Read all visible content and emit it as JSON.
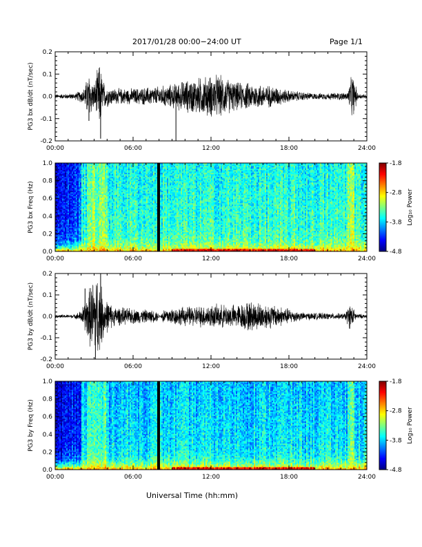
{
  "header": {
    "title": "2017/01/28  00:00−24:00 UT",
    "page": "Page 1/1"
  },
  "xlabel": "Universal Time (hh:mm)",
  "chart_data": [
    {
      "type": "line",
      "ylabel": "PG3 bx dB/dt (nT/sec)",
      "xlim": [
        0,
        24
      ],
      "ylim": [
        -0.2,
        0.2
      ],
      "xticks": [
        "00:00",
        "06:00",
        "12:00",
        "18:00",
        "24:00"
      ],
      "yticks": [
        "-0.2",
        "-0.1",
        "0.0",
        "0.1",
        "0.2"
      ],
      "color": "#000000",
      "envelope": [
        {
          "t": 0.0,
          "a": 0.01
        },
        {
          "t": 1.5,
          "a": 0.015
        },
        {
          "t": 2.2,
          "a": 0.04
        },
        {
          "t": 2.6,
          "a": 0.12
        },
        {
          "t": 3.0,
          "a": 0.06
        },
        {
          "t": 3.4,
          "a": 0.17
        },
        {
          "t": 3.8,
          "a": 0.06
        },
        {
          "t": 4.5,
          "a": 0.04
        },
        {
          "t": 6.0,
          "a": 0.04
        },
        {
          "t": 8.0,
          "a": 0.05
        },
        {
          "t": 9.0,
          "a": 0.06
        },
        {
          "t": 10.0,
          "a": 0.08
        },
        {
          "t": 11.5,
          "a": 0.1
        },
        {
          "t": 12.5,
          "a": 0.11
        },
        {
          "t": 14.0,
          "a": 0.07
        },
        {
          "t": 15.5,
          "a": 0.065
        },
        {
          "t": 17.0,
          "a": 0.05
        },
        {
          "t": 18.0,
          "a": 0.03
        },
        {
          "t": 20.0,
          "a": 0.015
        },
        {
          "t": 22.5,
          "a": 0.02
        },
        {
          "t": 22.9,
          "a": 0.12
        },
        {
          "t": 23.3,
          "a": 0.015
        },
        {
          "t": 24.0,
          "a": 0.01
        }
      ],
      "spikes": [
        {
          "t": 9.3,
          "v": -0.21
        },
        {
          "t": 3.5,
          "v": -0.19
        },
        {
          "t": 2.6,
          "v": -0.11
        }
      ]
    },
    {
      "type": "heatmap",
      "ylabel": "PG3 bx Freq (Hz)",
      "colorbar_label": "Log₁₀ Power",
      "xlim": [
        0,
        24
      ],
      "ylim": [
        0.0,
        1.0
      ],
      "xticks": [
        "00:00",
        "06:00",
        "12:00",
        "18:00",
        "24:00"
      ],
      "yticks": [
        "0.0",
        "0.2",
        "0.4",
        "0.6",
        "0.8",
        "1.0"
      ],
      "clim": [
        -4.8,
        -1.8
      ],
      "cticks": [
        "-1.8",
        "-2.8",
        "-3.8",
        "-4.8"
      ],
      "data_gap": [
        7.9,
        8.1
      ],
      "background_power": -3.5,
      "low_freq_power": -2.6,
      "quiet_interval": [
        0,
        2
      ],
      "quiet_power": -4.4
    },
    {
      "type": "line",
      "ylabel": "PG3 by dB/dt (nT/sec)",
      "xlim": [
        0,
        24
      ],
      "ylim": [
        -0.2,
        0.2
      ],
      "xticks": [
        "00:00",
        "06:00",
        "12:00",
        "18:00",
        "24:00"
      ],
      "yticks": [
        "-0.2",
        "-0.1",
        "0.0",
        "0.1",
        "0.2"
      ],
      "color": "#000000",
      "envelope": [
        {
          "t": 0.0,
          "a": 0.008
        },
        {
          "t": 1.5,
          "a": 0.01
        },
        {
          "t": 2.0,
          "a": 0.03
        },
        {
          "t": 2.5,
          "a": 0.12
        },
        {
          "t": 2.9,
          "a": 0.2
        },
        {
          "t": 3.3,
          "a": 0.22
        },
        {
          "t": 3.8,
          "a": 0.1
        },
        {
          "t": 4.5,
          "a": 0.05
        },
        {
          "t": 6.0,
          "a": 0.04
        },
        {
          "t": 7.8,
          "a": 0.03
        },
        {
          "t": 8.1,
          "a": 0.0
        },
        {
          "t": 8.3,
          "a": 0.04
        },
        {
          "t": 10.0,
          "a": 0.05
        },
        {
          "t": 12.0,
          "a": 0.06
        },
        {
          "t": 14.0,
          "a": 0.06
        },
        {
          "t": 15.0,
          "a": 0.08
        },
        {
          "t": 16.0,
          "a": 0.07
        },
        {
          "t": 17.5,
          "a": 0.05
        },
        {
          "t": 19.0,
          "a": 0.02
        },
        {
          "t": 22.3,
          "a": 0.015
        },
        {
          "t": 22.7,
          "a": 0.07
        },
        {
          "t": 23.2,
          "a": 0.015
        },
        {
          "t": 24.0,
          "a": 0.008
        }
      ],
      "spikes": [
        {
          "t": 3.1,
          "v": -0.22
        },
        {
          "t": 3.5,
          "v": 0.21
        },
        {
          "t": 2.3,
          "v": 0.13
        }
      ]
    },
    {
      "type": "heatmap",
      "ylabel": "PG3 by Freq (Hz)",
      "colorbar_label": "Log₁₀ Power",
      "xlim": [
        0,
        24
      ],
      "ylim": [
        0.0,
        1.0
      ],
      "xticks": [
        "00:00",
        "06:00",
        "12:00",
        "18:00",
        "24:00"
      ],
      "yticks": [
        "0.0",
        "0.2",
        "0.4",
        "0.6",
        "0.8",
        "1.0"
      ],
      "clim": [
        -4.8,
        -1.8
      ],
      "cticks": [
        "-1.8",
        "-2.8",
        "-3.8",
        "-4.8"
      ],
      "data_gap": [
        7.9,
        8.1
      ],
      "background_power": -3.7,
      "low_freq_power": -2.5,
      "quiet_interval": [
        0,
        2
      ],
      "quiet_power": -4.5
    }
  ]
}
